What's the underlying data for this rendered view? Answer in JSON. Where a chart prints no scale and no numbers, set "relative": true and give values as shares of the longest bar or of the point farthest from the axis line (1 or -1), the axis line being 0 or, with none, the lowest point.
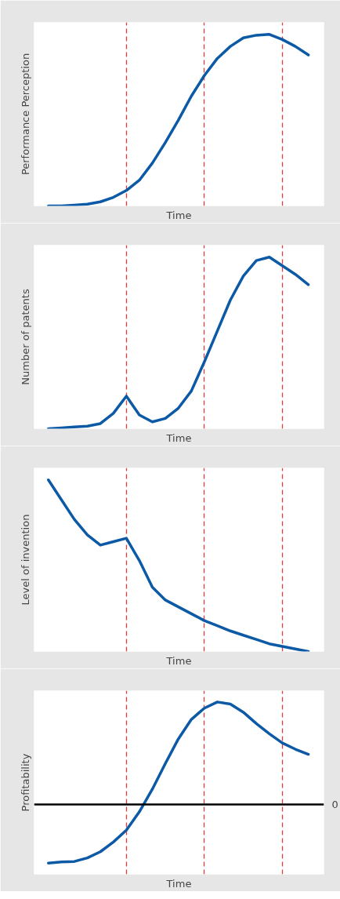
{
  "chart_data": [
    {
      "type": "line",
      "relative": true,
      "grid": "x",
      "xlabel": "Time",
      "ylabel": "Performance Perception",
      "categories": [
        null,
        null,
        null,
        null,
        null,
        null,
        null,
        null,
        null,
        null,
        null,
        null,
        null,
        null,
        null,
        null,
        null,
        null,
        null,
        null,
        null
      ],
      "series": [
        {
          "color": "#0c5aa6",
          "values": [
            0,
            0,
            0.005,
            0.01,
            0.024,
            0.05,
            0.09,
            0.15,
            0.25,
            0.37,
            0.5,
            0.64,
            0.76,
            0.86,
            0.93,
            0.98,
            0.995,
            1,
            0.97,
            0.93,
            0.88
          ]
        }
      ]
    },
    {
      "type": "line",
      "relative": true,
      "grid": "x",
      "xlabel": "Time",
      "ylabel": "Number of patents",
      "categories": [
        null,
        null,
        null,
        null,
        null,
        null,
        null,
        null,
        null,
        null,
        null,
        null,
        null,
        null,
        null,
        null,
        null,
        null,
        null,
        null,
        null
      ],
      "series": [
        {
          "color": "#0c5aa6",
          "values": [
            0,
            0.005,
            0.01,
            0.015,
            0.03,
            0.09,
            0.19,
            0.08,
            0.04,
            0.06,
            0.12,
            0.22,
            0.39,
            0.57,
            0.75,
            0.89,
            0.98,
            1,
            0.95,
            0.9,
            0.84
          ]
        }
      ]
    },
    {
      "type": "line",
      "relative": true,
      "grid": "x",
      "xlabel": "Time",
      "ylabel": "Level of invention",
      "categories": [
        null,
        null,
        null,
        null,
        null,
        null,
        null,
        null,
        null,
        null,
        null,
        null,
        null,
        null,
        null,
        null,
        null,
        null,
        null,
        null,
        null
      ],
      "series": [
        {
          "color": "#0c5aa6",
          "values": [
            1,
            0.885,
            0.77,
            0.68,
            0.62,
            0.64,
            0.66,
            0.53,
            0.375,
            0.3,
            0.26,
            0.22,
            0.18,
            0.15,
            0.12,
            0.095,
            0.07,
            0.045,
            0.03,
            0.015,
            0
          ]
        }
      ]
    },
    {
      "type": "line",
      "relative": true,
      "grid": "x",
      "xlabel": "Time",
      "ylabel": "Profitability",
      "categories": [
        null,
        null,
        null,
        null,
        null,
        null,
        null,
        null,
        null,
        null,
        null,
        null,
        null,
        null,
        null,
        null,
        null,
        null,
        null,
        null,
        null
      ],
      "series": [
        {
          "color": "#0c5aa6",
          "values": [
            -0.57,
            -0.56,
            -0.555,
            -0.52,
            -0.46,
            -0.365,
            -0.25,
            -0.07,
            0.15,
            0.4,
            0.64,
            0.83,
            0.94,
            1,
            0.98,
            0.9,
            0.79,
            0.69,
            0.6,
            0.54,
            0.49
          ]
        }
      ],
      "ref_lines": [
        {
          "axis": "y",
          "value": 0,
          "label": "0",
          "color": "#000000",
          "line_style": "solid"
        }
      ]
    }
  ]
}
